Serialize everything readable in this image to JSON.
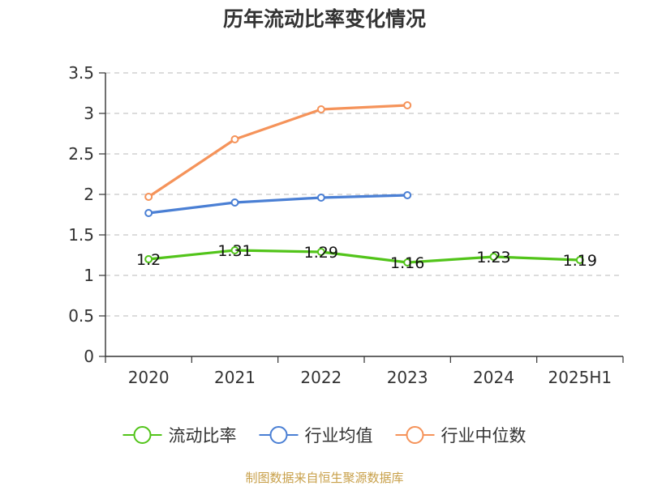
{
  "chart_data": {
    "type": "line",
    "title": "历年流动比率变化情况",
    "categories": [
      "2020",
      "2021",
      "2022",
      "2023",
      "2024",
      "2025H1"
    ],
    "ylim": [
      0,
      3.5
    ],
    "yticks": [
      "0",
      "0.5",
      "1",
      "1.5",
      "2",
      "2.5",
      "3",
      "3.5"
    ],
    "grid": true,
    "legend_position": "bottom",
    "series": [
      {
        "name": "流动比率",
        "color": "#52c41a",
        "values": [
          1.2,
          1.31,
          1.29,
          1.16,
          1.23,
          1.19
        ],
        "labels": [
          "1.2",
          "1.31",
          "1.29",
          "1.16",
          "1.23",
          "1.19"
        ]
      },
      {
        "name": "行业均值",
        "color": "#4a7fd4",
        "values": [
          1.77,
          1.9,
          1.96,
          1.99,
          null,
          null
        ]
      },
      {
        "name": "行业中位数",
        "color": "#f5935a",
        "values": [
          1.97,
          2.68,
          3.05,
          3.1,
          null,
          null
        ]
      }
    ]
  },
  "source": "制图数据来自恒生聚源数据库"
}
